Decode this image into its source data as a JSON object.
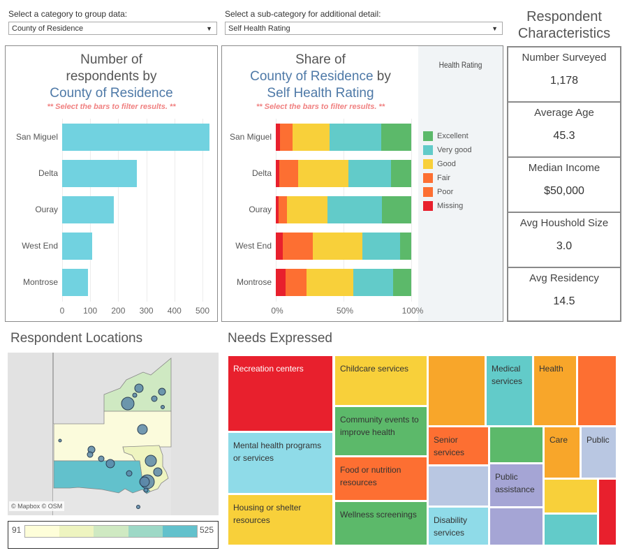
{
  "filters": {
    "category": {
      "label": "Select a category to group data:",
      "value": "County of Residence"
    },
    "subcategory": {
      "label": "Select a sub-category for additional detail:",
      "value": "Self Health Rating"
    }
  },
  "bar_panel": {
    "title_line1": "Number of",
    "title_line2": "respondents by",
    "title_line3": "County of Residence",
    "hint": "** Select the bars to filter results. **"
  },
  "stack_panel": {
    "title_line1": "Share of",
    "title_line2a": "County of Residence",
    "title_line2b": " by",
    "title_line3": "Self Health Rating",
    "hint": "** Select the bars to filter results. **",
    "legend_title": "Health  Rating"
  },
  "characteristics": {
    "title_line1": "Respondent",
    "title_line2": "Characteristics",
    "stats": [
      {
        "label": "Number Surveyed",
        "value": "1,178"
      },
      {
        "label": "Average Age",
        "value": "45.3"
      },
      {
        "label": "Median Income",
        "value": "$50,000"
      },
      {
        "label": "Avg Houshold Size",
        "value": "3.0"
      },
      {
        "label": "Avg Residency",
        "value": "14.5"
      }
    ]
  },
  "map": {
    "title": "Respondent Locations",
    "attribution": "© Mapbox  © OSM",
    "legend_min": "91",
    "legend_max": "525",
    "legend_colors": [
      "#fefed9",
      "#eef4c0",
      "#cfe9c2",
      "#9dd8c6",
      "#62c1cc"
    ]
  },
  "needs": {
    "title": "Needs Expressed",
    "cells": [
      {
        "label": "Recreation centers",
        "color": "#e8202d",
        "text_color": "#ffffff"
      },
      {
        "label": "Childcare services",
        "color": "#f8d03a"
      },
      {
        "label": "Community events to improve health",
        "color": "#5cb96a"
      },
      {
        "label": "Mental health programs or services",
        "color": "#8fdbe8"
      },
      {
        "label": "Food or nutrition resources",
        "color": "#fd6f32"
      },
      {
        "label": "Housing or shelter resources",
        "color": "#f8d03a"
      },
      {
        "label": "Wellness screenings",
        "color": "#5cb96a"
      },
      {
        "label": "",
        "color": "#f8a62a"
      },
      {
        "label": "Medical services",
        "color": "#62cbc9"
      },
      {
        "label": "Health",
        "color": "#f8a62a"
      },
      {
        "label": "",
        "color": "#fd6f32"
      },
      {
        "label": "Senior services",
        "color": "#fd6f32"
      },
      {
        "label": "",
        "color": "#5cb96a"
      },
      {
        "label": "Care",
        "color": "#f8a62a"
      },
      {
        "label": "Public",
        "color": "#b9c7e2"
      },
      {
        "label": "",
        "color": "#b9c7e2"
      },
      {
        "label": "Public assistance",
        "color": "#a5a5d5"
      },
      {
        "label": "Disability services",
        "color": "#8fdbe8"
      },
      {
        "label": "",
        "color": "#a5a5d5"
      },
      {
        "label": "",
        "color": "#f8d03a"
      },
      {
        "label": "",
        "color": "#62cbc9"
      },
      {
        "label": "",
        "color": "#e8202d"
      }
    ]
  },
  "chart_data": [
    {
      "type": "bar",
      "title": "Number of respondents by County of Residence",
      "categories": [
        "San Miguel",
        "Delta",
        "Ouray",
        "West End",
        "Montrose"
      ],
      "values": [
        525,
        266,
        184,
        107,
        91
      ],
      "xlabel": "",
      "ylabel": "",
      "xlim": [
        0,
        525
      ],
      "ticks": [
        "0",
        "100",
        "200",
        "300",
        "400",
        "500"
      ],
      "tick_values": [
        0,
        100,
        200,
        300,
        400,
        500
      ],
      "color": "#71d2e0",
      "grid": true
    },
    {
      "type": "bar",
      "stacked": true,
      "title": "Share of County of Residence by Self Health Rating",
      "categories": [
        "San Miguel",
        "Delta",
        "Ouray",
        "West End",
        "Montrose"
      ],
      "series": [
        {
          "name": "Missing",
          "color": "#e8202d",
          "values": [
            3.1,
            2.6,
            2.1,
            5.2,
            7.2
          ]
        },
        {
          "name": "Poor",
          "color": "#fd6f32",
          "values": [
            0,
            0,
            0,
            0,
            0
          ]
        },
        {
          "name": "Fair",
          "color": "#fd6f32",
          "values": [
            9.3,
            13.9,
            6.2,
            22.2,
            15.5
          ]
        },
        {
          "name": "Good",
          "color": "#f8d03a",
          "values": [
            27.3,
            37.1,
            29.9,
            36.6,
            34.5
          ]
        },
        {
          "name": "Very good",
          "color": "#62cbc9",
          "values": [
            38.1,
            31.4,
            40.2,
            27.8,
            29.4
          ]
        },
        {
          "name": "Excellent",
          "color": "#5cb96a",
          "values": [
            22.2,
            15.0,
            21.6,
            8.2,
            13.4
          ]
        }
      ],
      "legend": [
        "Excellent",
        "Very good",
        "Good",
        "Fair",
        "Poor",
        "Missing"
      ],
      "legend_placement": "right",
      "xlim": [
        0,
        100
      ],
      "ticks": [
        "0%",
        "50%",
        "100%"
      ],
      "tick_values": [
        0,
        50,
        100
      ],
      "grid": true
    }
  ]
}
